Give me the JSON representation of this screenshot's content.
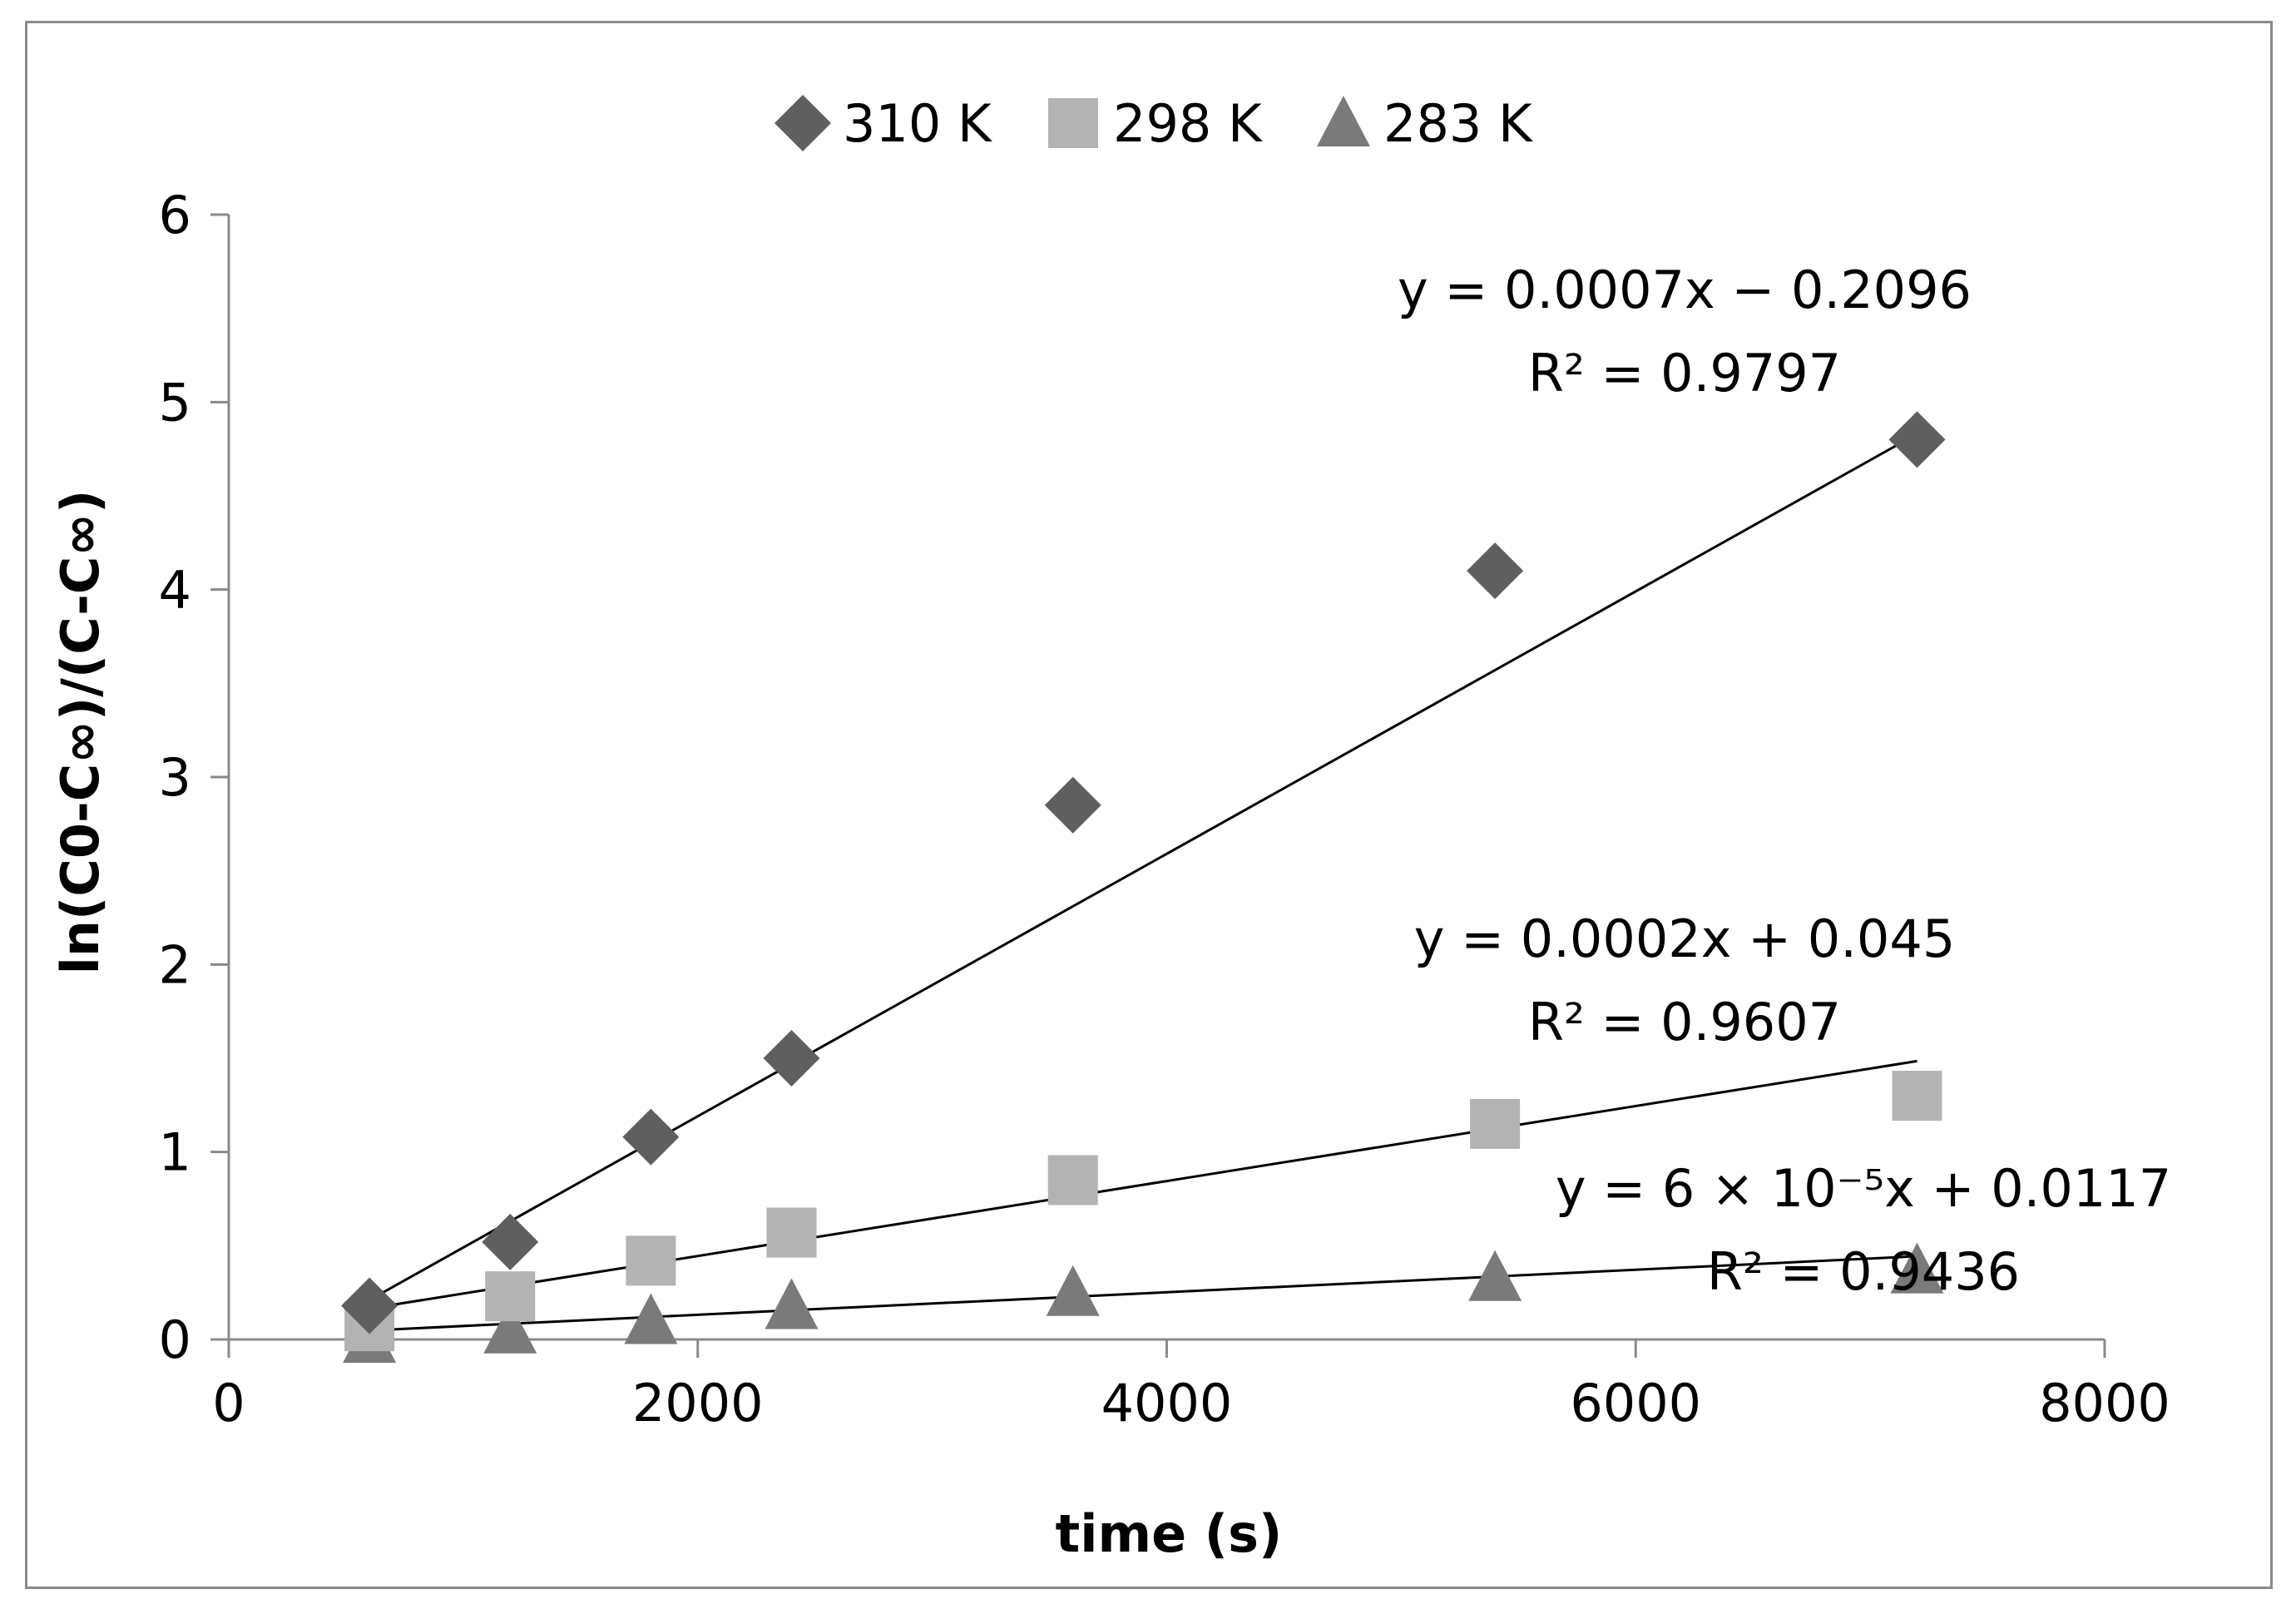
{
  "chart_data": {
    "type": "scatter",
    "title": "",
    "xlabel": "time (s)",
    "ylabel": "ln(C0-C∞)/(C-C∞)",
    "xlim": [
      0,
      8000
    ],
    "ylim": [
      0,
      6
    ],
    "xticks": [
      0,
      2000,
      4000,
      6000,
      8000
    ],
    "yticks": [
      0,
      1,
      2,
      3,
      4,
      5,
      6
    ],
    "grid": false,
    "legend_position": "top",
    "series": [
      {
        "name": "310 K",
        "marker": "diamond",
        "color": "#5f5f5f",
        "x": [
          600,
          1200,
          1800,
          2400,
          3600,
          5400,
          7200
        ],
        "y": [
          0.18,
          0.52,
          1.08,
          1.5,
          2.85,
          4.1,
          4.8
        ],
        "trendline": {
          "slope": 0.0007,
          "intercept": -0.2096,
          "x_range": [
            600,
            7200
          ],
          "equation": "y = 0.0007x − 0.2096",
          "r2": "R² = 0.9797"
        }
      },
      {
        "name": "298 K",
        "marker": "square",
        "color": "#b3b3b3",
        "x": [
          600,
          1200,
          1800,
          2400,
          3600,
          5400,
          7200
        ],
        "y": [
          0.07,
          0.23,
          0.42,
          0.57,
          0.85,
          1.15,
          1.3
        ],
        "trendline": {
          "slope": 0.0002,
          "intercept": 0.045,
          "x_range": [
            600,
            7200
          ],
          "equation": "y = 0.0002x + 0.045",
          "r2": "R² = 0.9607"
        }
      },
      {
        "name": "283 K",
        "marker": "triangle",
        "color": "#7a7a7a",
        "x": [
          600,
          1200,
          1800,
          2400,
          3600,
          5400,
          7200
        ],
        "y": [
          0.0,
          0.05,
          0.1,
          0.18,
          0.25,
          0.33,
          0.37
        ],
        "trendline": {
          "slope": 6e-05,
          "intercept": 0.0117,
          "x_range": [
            600,
            7200
          ],
          "equation": "y = 6 × 10⁻⁵x + 0.0117",
          "r2": "R² = 0.9436"
        }
      }
    ]
  }
}
